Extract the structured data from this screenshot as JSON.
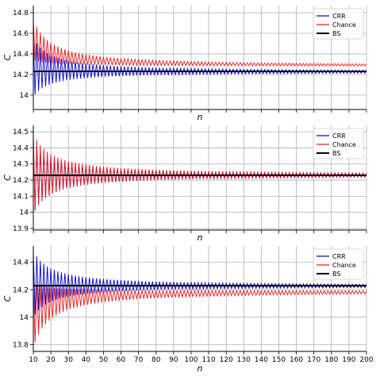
{
  "chart_data": [
    {
      "type": "line",
      "xlabel": "n",
      "ylabel": "C",
      "xlim": [
        10,
        200
      ],
      "ylim": [
        13.86,
        14.87
      ],
      "yticks": [
        14.0,
        14.2,
        14.4,
        14.6,
        14.8
      ],
      "xticks": [
        10,
        20,
        30,
        40,
        50,
        60,
        70,
        80,
        90,
        100,
        110,
        120,
        130,
        140,
        150,
        160,
        170,
        180,
        190,
        200
      ],
      "show_xtick_labels": false,
      "grid": true,
      "legend_position": "upper-right",
      "bs_value": 14.23,
      "series": [
        {
          "name": "CRR",
          "color": "#0000cc",
          "kind": "oscillating",
          "center": 14.225,
          "amp_even": 0.33,
          "amp_odd": -0.24
        },
        {
          "name": "Chance",
          "color": "#e8191c",
          "kind": "oscillating",
          "center": 14.28,
          "amp_even": 0.46,
          "amp_odd": 0.06
        },
        {
          "name": "BS",
          "color": "#000000",
          "kind": "flat",
          "value": 14.23
        }
      ]
    },
    {
      "type": "line",
      "xlabel": "n",
      "ylabel": "C",
      "xlim": [
        10,
        200
      ],
      "ylim": [
        13.89,
        14.54
      ],
      "yticks": [
        13.9,
        14.0,
        14.1,
        14.2,
        14.3,
        14.4,
        14.5
      ],
      "xticks": [
        10,
        20,
        30,
        40,
        50,
        60,
        70,
        80,
        90,
        100,
        110,
        120,
        130,
        140,
        150,
        160,
        170,
        180,
        190,
        200
      ],
      "show_xtick_labels": false,
      "grid": true,
      "legend_position": "upper-right",
      "bs_value": 14.23,
      "series": [
        {
          "name": "CRR",
          "color": "#0000cc",
          "kind": "oscillating",
          "center": 14.23,
          "amp_even": 0.23,
          "amp_odd": -0.24
        },
        {
          "name": "Chance",
          "color": "#e8191c",
          "kind": "oscillating",
          "center": 14.232,
          "amp_even": 0.26,
          "amp_odd": -0.24
        },
        {
          "name": "BS",
          "color": "#000000",
          "kind": "flat",
          "value": 14.23
        }
      ]
    },
    {
      "type": "line",
      "xlabel": "n",
      "ylabel": "C",
      "xlim": [
        10,
        200
      ],
      "ylim": [
        13.75,
        14.52
      ],
      "yticks": [
        13.8,
        14.0,
        14.2,
        14.4
      ],
      "xticks": [
        10,
        20,
        30,
        40,
        50,
        60,
        70,
        80,
        90,
        100,
        110,
        120,
        130,
        140,
        150,
        160,
        170,
        180,
        190,
        200
      ],
      "show_xtick_labels": true,
      "grid": true,
      "legend_position": "upper-right",
      "bs_value": 14.23,
      "series": [
        {
          "name": "CRR",
          "color": "#0000cc",
          "kind": "oscillating",
          "center": 14.227,
          "amp_even": 0.26,
          "amp_odd": -0.23
        },
        {
          "name": "Chance",
          "color": "#e8191c",
          "kind": "oscillating",
          "center": 14.19,
          "amp_even": 0.05,
          "amp_odd": -0.41
        },
        {
          "name": "BS",
          "color": "#000000",
          "kind": "flat",
          "value": 14.23
        }
      ]
    }
  ]
}
